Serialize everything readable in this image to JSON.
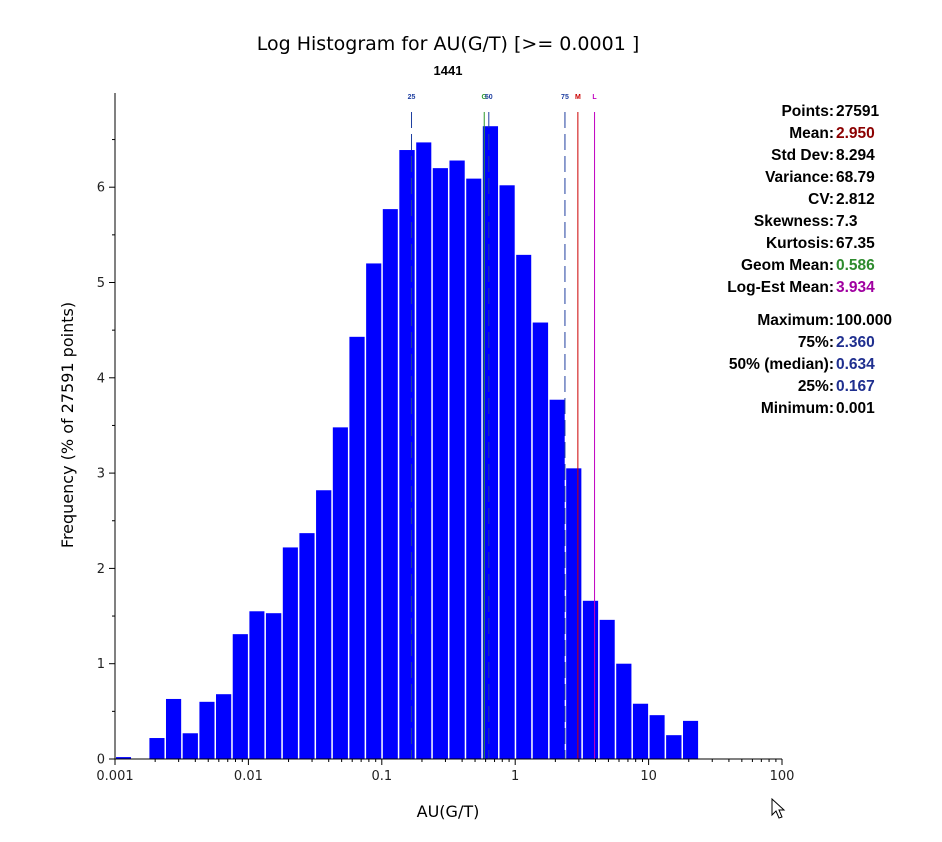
{
  "chart_data": {
    "type": "bar",
    "title": "Log Histogram for AU(G/T) [>= 0.0001 ]",
    "subtitle": "1441",
    "xlabel": "AU(G/T)",
    "ylabel": "Frequency (% of 27591 points)",
    "x_scale": "log",
    "xlim": [
      0.001,
      100
    ],
    "ylim": [
      0,
      7
    ],
    "x_ticks": [
      "0.001",
      "0.01",
      "0.1",
      "1",
      "10",
      "100"
    ],
    "y_ticks": [
      "0",
      "1",
      "2",
      "3",
      "4",
      "5",
      "6"
    ],
    "bar_color": "#0000ff",
    "bins": [
      {
        "x0": 0.001,
        "x1": 0.00133,
        "value": 0.02
      },
      {
        "x0": 0.00133,
        "x1": 0.00178,
        "value": 0.0
      },
      {
        "x0": 0.00178,
        "x1": 0.00237,
        "value": 0.22
      },
      {
        "x0": 0.00237,
        "x1": 0.00316,
        "value": 0.63
      },
      {
        "x0": 0.00316,
        "x1": 0.00422,
        "value": 0.27
      },
      {
        "x0": 0.00422,
        "x1": 0.00562,
        "value": 0.6
      },
      {
        "x0": 0.00562,
        "x1": 0.0075,
        "value": 0.68
      },
      {
        "x0": 0.0075,
        "x1": 0.01,
        "value": 1.31
      },
      {
        "x0": 0.01,
        "x1": 0.0133,
        "value": 1.55
      },
      {
        "x0": 0.0133,
        "x1": 0.0178,
        "value": 1.53
      },
      {
        "x0": 0.0178,
        "x1": 0.0237,
        "value": 2.22
      },
      {
        "x0": 0.0237,
        "x1": 0.0316,
        "value": 2.37
      },
      {
        "x0": 0.0316,
        "x1": 0.0422,
        "value": 2.82
      },
      {
        "x0": 0.0422,
        "x1": 0.0562,
        "value": 3.48
      },
      {
        "x0": 0.0562,
        "x1": 0.075,
        "value": 4.43
      },
      {
        "x0": 0.075,
        "x1": 0.1,
        "value": 5.2
      },
      {
        "x0": 0.1,
        "x1": 0.133,
        "value": 5.77
      },
      {
        "x0": 0.133,
        "x1": 0.178,
        "value": 6.39
      },
      {
        "x0": 0.178,
        "x1": 0.237,
        "value": 6.47
      },
      {
        "x0": 0.237,
        "x1": 0.316,
        "value": 6.2
      },
      {
        "x0": 0.316,
        "x1": 0.422,
        "value": 6.28
      },
      {
        "x0": 0.422,
        "x1": 0.562,
        "value": 6.09
      },
      {
        "x0": 0.562,
        "x1": 0.75,
        "value": 6.64
      },
      {
        "x0": 0.75,
        "x1": 1.0,
        "value": 6.02
      },
      {
        "x0": 1.0,
        "x1": 1.33,
        "value": 5.29
      },
      {
        "x0": 1.33,
        "x1": 1.78,
        "value": 4.58
      },
      {
        "x0": 1.78,
        "x1": 2.37,
        "value": 3.77
      },
      {
        "x0": 2.37,
        "x1": 3.16,
        "value": 3.05
      },
      {
        "x0": 3.16,
        "x1": 4.22,
        "value": 1.66
      },
      {
        "x0": 4.22,
        "x1": 5.62,
        "value": 1.46
      },
      {
        "x0": 5.62,
        "x1": 7.5,
        "value": 1.0
      },
      {
        "x0": 7.5,
        "x1": 10.0,
        "value": 0.58
      },
      {
        "x0": 10.0,
        "x1": 13.3,
        "value": 0.46
      },
      {
        "x0": 13.3,
        "x1": 17.8,
        "value": 0.25
      },
      {
        "x0": 17.8,
        "x1": 23.7,
        "value": 0.4
      }
    ],
    "markers": [
      {
        "label": "25",
        "value": 0.167,
        "color": "#1f3fa0",
        "style": "dashed"
      },
      {
        "label": "G",
        "value": 0.586,
        "color": "#2e9a2e",
        "style": "solid"
      },
      {
        "label": "50",
        "value": 0.634,
        "color": "#1f3fa0",
        "style": "dashed"
      },
      {
        "label": "75",
        "value": 2.36,
        "color": "#1f3fa0",
        "style": "dashed"
      },
      {
        "label": "M",
        "value": 2.95,
        "color": "#cc0000",
        "style": "solid"
      },
      {
        "label": "L",
        "value": 3.934,
        "color": "#c000c0",
        "style": "solid"
      }
    ]
  },
  "stats": [
    {
      "label": "Points:",
      "value": "27591",
      "color": "#000000"
    },
    {
      "label": "Mean:",
      "value": "2.950",
      "color": "#8b0000"
    },
    {
      "label": "Std Dev:",
      "value": "8.294",
      "color": "#000000"
    },
    {
      "label": "Variance:",
      "value": "68.79",
      "color": "#000000"
    },
    {
      "label": "CV:",
      "value": "2.812",
      "color": "#000000"
    },
    {
      "label": "Skewness:",
      "value": "7.3",
      "color": "#000000"
    },
    {
      "label": "Kurtosis:",
      "value": "67.35",
      "color": "#000000"
    },
    {
      "label": "Geom Mean:",
      "value": "0.586",
      "color": "#2e8b2e"
    },
    {
      "label": "Log-Est Mean:",
      "value": "3.934",
      "color": "#a000a0"
    },
    {
      "label": "Maximum:",
      "value": "100.000",
      "color": "#000000"
    },
    {
      "label": "75%:",
      "value": "2.360",
      "color": "#1f2f8f"
    },
    {
      "label": "50% (median):",
      "value": "0.634",
      "color": "#1f2f8f"
    },
    {
      "label": "25%:",
      "value": "0.167",
      "color": "#1f2f8f"
    },
    {
      "label": "Minimum:",
      "value": "0.001",
      "color": "#000000"
    }
  ]
}
